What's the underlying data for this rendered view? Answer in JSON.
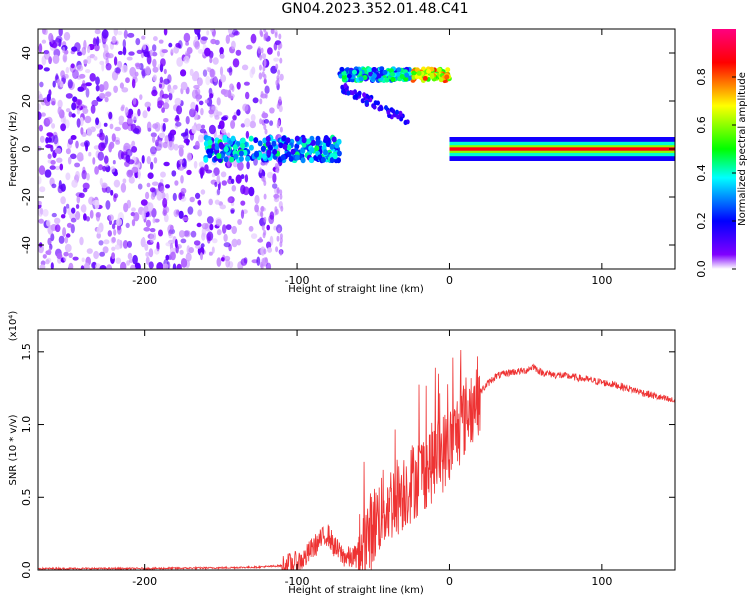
{
  "title": "GN04.2023.352.01.48.C41",
  "chart_data": [
    {
      "type": "heatmap",
      "xlabel": "Height of straight line (km)",
      "ylabel": "Frequency (Hz)",
      "xlim": [
        -270,
        148
      ],
      "ylim": [
        -50,
        50
      ],
      "xticks": [
        -200,
        -100,
        0,
        100
      ],
      "yticks": [
        -40,
        -20,
        0,
        20,
        40
      ],
      "colorbar": {
        "label": "Normalized spectral amplitude",
        "range": [
          0,
          1
        ],
        "ticks": [
          "0.0",
          "0.2",
          "0.4",
          "0.6",
          "0.8"
        ],
        "colormap": [
          "#ffffff",
          "#8000ff",
          "#0000ff",
          "#00ffff",
          "#00ff00",
          "#ffff00",
          "#ff0000",
          "#ff0080"
        ]
      },
      "features": [
        {
          "name": "scattered noise",
          "x_range": [
            -270,
            -110
          ],
          "freq_range": [
            -50,
            50
          ],
          "amplitude": 0.15
        },
        {
          "name": "band near 0 Hz",
          "x_range": [
            -160,
            -72
          ],
          "freq_center": 0,
          "freq_width": 6,
          "amplitude": 0.35
        },
        {
          "name": "band near 30 Hz",
          "x_range": [
            -72,
            0
          ],
          "freq_center": 31,
          "freq_width": 5,
          "amplitude": 0.6
        },
        {
          "name": "steady line at 0 Hz",
          "x_range": [
            0,
            148
          ],
          "freq_center": 0,
          "freq_width": 4,
          "amplitude": 0.9
        }
      ]
    },
    {
      "type": "line",
      "xlabel": "Height of straight line (km)",
      "ylabel": "SNR (10 * v/v)",
      "multiplier": "(x10⁴)",
      "xlim": [
        -270,
        148
      ],
      "ylim": [
        0,
        1.65
      ],
      "xticks": [
        -200,
        -100,
        0,
        100
      ],
      "yticks": [
        "0.0",
        "0.5",
        "1.0",
        "1.5"
      ],
      "color": "#ee3333",
      "series": [
        {
          "x": [
            -270,
            -250,
            -200,
            -150,
            -125,
            -110,
            -100,
            -95,
            -90,
            -85,
            -80,
            -75,
            -70,
            -65,
            -60,
            -55,
            -50,
            -45,
            -40,
            -35,
            -30,
            -25,
            -20,
            -15,
            -10,
            -5,
            0,
            5,
            10,
            15,
            20,
            25,
            30,
            40,
            50,
            55,
            60,
            70,
            80,
            90,
            100,
            110,
            120,
            130,
            140,
            148
          ],
          "y": [
            0.01,
            0.01,
            0.01,
            0.015,
            0.02,
            0.03,
            0.05,
            0.08,
            0.15,
            0.2,
            0.25,
            0.15,
            0.1,
            0.08,
            0.1,
            0.2,
            0.3,
            0.4,
            0.45,
            0.5,
            0.55,
            0.6,
            0.65,
            0.7,
            0.75,
            0.8,
            0.85,
            0.95,
            1.05,
            1.15,
            1.22,
            1.28,
            1.33,
            1.36,
            1.37,
            1.4,
            1.36,
            1.34,
            1.33,
            1.31,
            1.29,
            1.27,
            1.24,
            1.21,
            1.18,
            1.16
          ]
        }
      ]
    }
  ]
}
